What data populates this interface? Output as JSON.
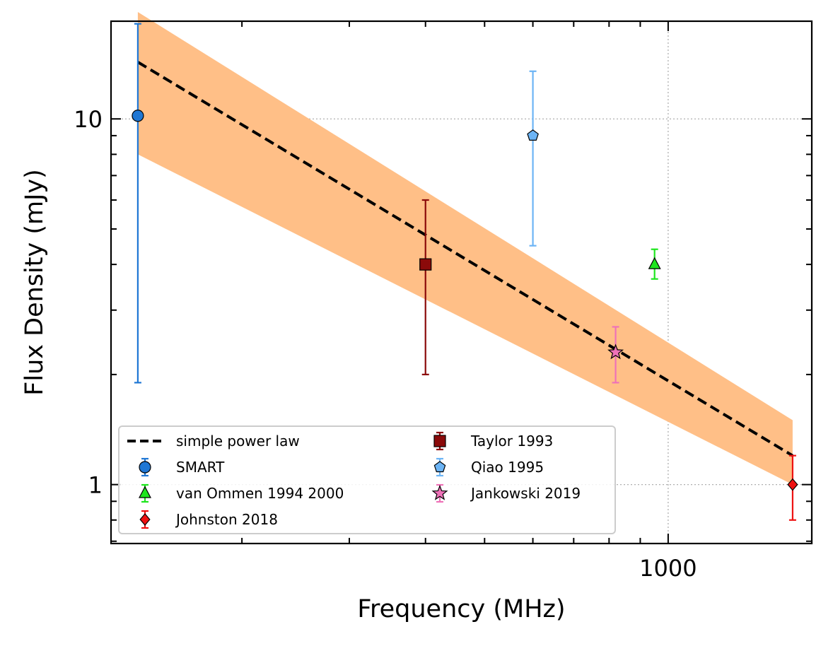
{
  "chart_data": {
    "type": "scatter",
    "xlabel": "Frequency (MHz)",
    "ylabel": "Flux Density (mJy)",
    "x_scale": "log",
    "y_scale": "log",
    "xlim": [
      122,
      1720
    ],
    "ylim": [
      0.69,
      18.5
    ],
    "x_tick_labels": [
      {
        "value": 1000,
        "label": "1000"
      }
    ],
    "y_tick_labels": [
      {
        "value": 1,
        "label": "1"
      },
      {
        "value": 10,
        "label": "10"
      }
    ],
    "grid": true,
    "legend_position": "lower-left",
    "fit": {
      "name": "simple power law",
      "x": [
        135,
        1600
      ],
      "y": [
        14.3,
        1.2
      ],
      "band_upper": [
        19.6,
        1.5
      ],
      "band_lower": [
        8.0,
        1.0
      ],
      "line_color": "#000000",
      "band_color": "#ffbf87"
    },
    "series": [
      {
        "name": "SMART",
        "marker": "circle",
        "color": "#1f77d4",
        "points": [
          {
            "x": 135,
            "y": 10.2,
            "yerr_low": 1.9,
            "yerr_high": 18.2
          }
        ]
      },
      {
        "name": "van Ommen 1994 2000",
        "marker": "triangle",
        "color": "#1ee61e",
        "points": [
          {
            "x": 950,
            "y": 4.0,
            "yerr_low": 3.65,
            "yerr_high": 4.4
          }
        ]
      },
      {
        "name": "Johnston 2018",
        "marker": "diamond",
        "color": "#ee1111",
        "points": [
          {
            "x": 1600,
            "y": 1.0,
            "yerr_low": 0.8,
            "yerr_high": 1.2
          }
        ]
      },
      {
        "name": "Taylor 1993",
        "marker": "square",
        "color": "#8b0a0a",
        "points": [
          {
            "x": 400,
            "y": 4.0,
            "yerr_low": 2.0,
            "yerr_high": 6.0
          }
        ]
      },
      {
        "name": "Qiao 1995",
        "marker": "pentagon",
        "color": "#6cb4f5",
        "points": [
          {
            "x": 600,
            "y": 9.0,
            "yerr_low": 4.5,
            "yerr_high": 13.5
          }
        ]
      },
      {
        "name": "Jankowski 2019",
        "marker": "star",
        "color": "#ee72b8",
        "points": [
          {
            "x": 820,
            "y": 2.3,
            "yerr_low": 1.9,
            "yerr_high": 2.7
          }
        ]
      }
    ]
  }
}
